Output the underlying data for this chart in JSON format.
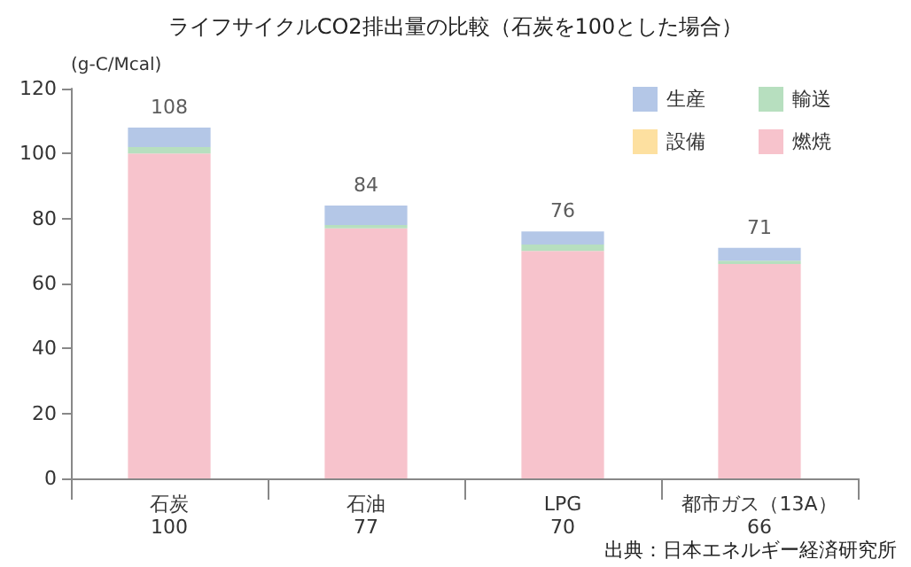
{
  "chart_data": {
    "type": "bar",
    "title": "ライフサイクルCO2排出量の比較（石炭を100とした場合）",
    "ylabel": "(g-C/Mcal)",
    "categories": [
      "石炭\n100",
      "石油\n77",
      "LPG\n70",
      "都市ガス（13A）\n66"
    ],
    "stacked": true,
    "series": [
      {
        "name": "燃焼",
        "color": "#f7c3cc",
        "values": [
          100,
          77,
          70,
          66
        ]
      },
      {
        "name": "設備",
        "color": "#fde0a0",
        "values": [
          0,
          0,
          0,
          0
        ]
      },
      {
        "name": "輸送",
        "color": "#b7dfbf",
        "values": [
          2,
          1,
          2,
          1
        ]
      },
      {
        "name": "生産",
        "color": "#b4c7e7",
        "values": [
          6,
          6,
          4,
          4
        ]
      }
    ],
    "totals": [
      "108",
      "84",
      "76",
      "71"
    ],
    "ylim": [
      0,
      120
    ],
    "yticks": [
      0,
      20,
      40,
      60,
      80,
      100,
      120
    ],
    "grid": false,
    "legend": "top right",
    "annotations": [
      "出典：日本エネルギー経済研究所"
    ]
  }
}
